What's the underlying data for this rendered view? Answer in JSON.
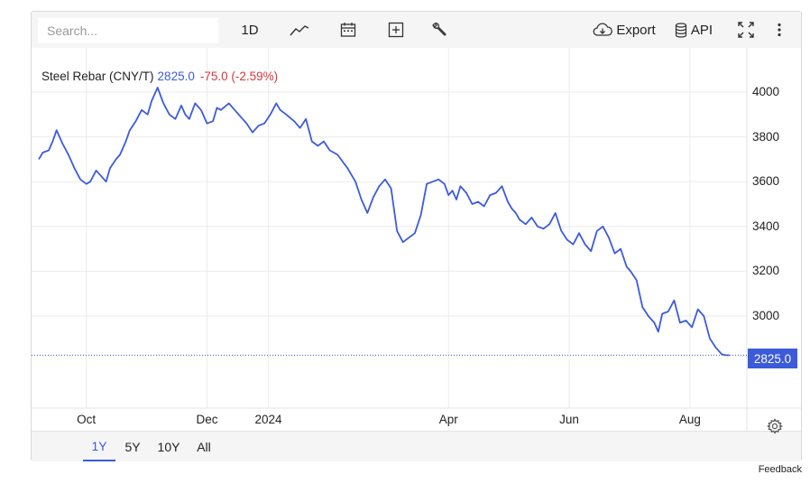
{
  "toolbar": {
    "search_placeholder": "Search...",
    "interval_label": "1D",
    "export_label": "Export",
    "api_label": "API",
    "icons": [
      "line-chart-icon",
      "calendar-icon",
      "add-comparison-icon",
      "wrench-icon",
      "cloud-download-icon",
      "database-icon",
      "fullscreen-icon",
      "more-vertical-icon"
    ]
  },
  "legend": {
    "name": "Steel Rebar (CNY/T)",
    "price": "2825.0",
    "change": "-75.0 (-2.59%)"
  },
  "last_value_label": "2825.0",
  "range_buttons": [
    "1Y",
    "5Y",
    "10Y",
    "All"
  ],
  "active_range": "1Y",
  "feedback_label": "Feedback",
  "colors": {
    "line": "#3b5bdb",
    "negative": "#d9363e",
    "grid": "#ebebeb"
  },
  "chart_data": {
    "type": "line",
    "title": "Steel Rebar (CNY/T)",
    "xlabel": "",
    "ylabel": "",
    "ylim": [
      2600,
      4090
    ],
    "yticks": [
      3000,
      3200,
      3400,
      3600,
      3800,
      4000
    ],
    "ytick_labels": [
      "3000",
      "3200",
      "3400",
      "3600",
      "3800",
      "4000"
    ],
    "xlim": [
      "2023-09-07",
      "2024-08-22"
    ],
    "xticks": [
      "2023-10-01",
      "2023-12-01",
      "2024-01-01",
      "2024-04-01",
      "2024-06-01",
      "2024-08-01"
    ],
    "xtick_labels": [
      "Oct",
      "Dec",
      "2024",
      "Apr",
      "Jun",
      "Aug"
    ],
    "grid": true,
    "series": [
      {
        "name": "Steel Rebar (CNY/T)",
        "x": [
          "2023-09-07",
          "2023-09-09",
          "2023-09-12",
          "2023-09-14",
          "2023-09-16",
          "2023-09-19",
          "2023-09-22",
          "2023-09-25",
          "2023-09-28",
          "2023-10-01",
          "2023-10-03",
          "2023-10-06",
          "2023-10-09",
          "2023-10-11",
          "2023-10-13",
          "2023-10-16",
          "2023-10-18",
          "2023-10-21",
          "2023-10-23",
          "2023-10-26",
          "2023-10-29",
          "2023-11-01",
          "2023-11-03",
          "2023-11-06",
          "2023-11-09",
          "2023-11-12",
          "2023-11-15",
          "2023-11-18",
          "2023-11-20",
          "2023-11-22",
          "2023-11-25",
          "2023-11-28",
          "2023-12-01",
          "2023-12-04",
          "2023-12-06",
          "2023-12-08",
          "2023-12-12",
          "2023-12-15",
          "2023-12-18",
          "2023-12-21",
          "2023-12-24",
          "2023-12-27",
          "2023-12-30",
          "2024-01-02",
          "2024-01-05",
          "2024-01-07",
          "2024-01-10",
          "2024-01-14",
          "2024-01-17",
          "2024-01-20",
          "2024-01-23",
          "2024-01-26",
          "2024-01-29",
          "2024-02-01",
          "2024-02-05",
          "2024-02-10",
          "2024-02-14",
          "2024-02-17",
          "2024-02-20",
          "2024-02-23",
          "2024-02-26",
          "2024-02-29",
          "2024-03-03",
          "2024-03-06",
          "2024-03-09",
          "2024-03-12",
          "2024-03-15",
          "2024-03-18",
          "2024-03-21",
          "2024-03-24",
          "2024-03-27",
          "2024-03-30",
          "2024-04-01",
          "2024-04-03",
          "2024-04-05",
          "2024-04-07",
          "2024-04-10",
          "2024-04-13",
          "2024-04-16",
          "2024-04-19",
          "2024-04-22",
          "2024-04-25",
          "2024-04-28",
          "2024-05-01",
          "2024-05-03",
          "2024-05-05",
          "2024-05-07",
          "2024-05-10",
          "2024-05-13",
          "2024-05-16",
          "2024-05-19",
          "2024-05-22",
          "2024-05-25",
          "2024-05-28",
          "2024-05-31",
          "2024-06-03",
          "2024-06-06",
          "2024-06-09",
          "2024-06-12",
          "2024-06-15",
          "2024-06-18",
          "2024-06-21",
          "2024-06-24",
          "2024-06-27",
          "2024-06-30",
          "2024-07-02",
          "2024-07-05",
          "2024-07-08",
          "2024-07-11",
          "2024-07-14",
          "2024-07-16",
          "2024-07-18",
          "2024-07-21",
          "2024-07-24",
          "2024-07-27",
          "2024-07-30",
          "2024-08-02",
          "2024-08-05",
          "2024-08-08",
          "2024-08-11",
          "2024-08-14",
          "2024-08-17",
          "2024-08-19",
          "2024-08-21"
        ],
        "values": [
          3700,
          3730,
          3740,
          3780,
          3830,
          3770,
          3720,
          3660,
          3610,
          3590,
          3600,
          3650,
          3620,
          3600,
          3660,
          3700,
          3720,
          3780,
          3830,
          3870,
          3920,
          3900,
          3960,
          4020,
          3950,
          3900,
          3880,
          3940,
          3900,
          3880,
          3950,
          3920,
          3860,
          3870,
          3930,
          3920,
          3950,
          3920,
          3890,
          3860,
          3820,
          3850,
          3860,
          3900,
          3950,
          3920,
          3900,
          3870,
          3840,
          3880,
          3780,
          3760,
          3780,
          3740,
          3720,
          3660,
          3600,
          3520,
          3460,
          3530,
          3580,
          3610,
          3570,
          3380,
          3330,
          3350,
          3370,
          3450,
          3590,
          3600,
          3610,
          3590,
          3540,
          3560,
          3520,
          3580,
          3550,
          3500,
          3510,
          3490,
          3540,
          3550,
          3580,
          3510,
          3480,
          3460,
          3430,
          3410,
          3440,
          3400,
          3390,
          3410,
          3460,
          3380,
          3340,
          3320,
          3370,
          3320,
          3290,
          3380,
          3400,
          3350,
          3280,
          3300,
          3220,
          3200,
          3160,
          3040,
          3000,
          2970,
          2930,
          3010,
          3020,
          3070,
          2970,
          2980,
          2950,
          3030,
          3000,
          2900,
          2860,
          2830,
          2825,
          2825
        ]
      }
    ]
  }
}
